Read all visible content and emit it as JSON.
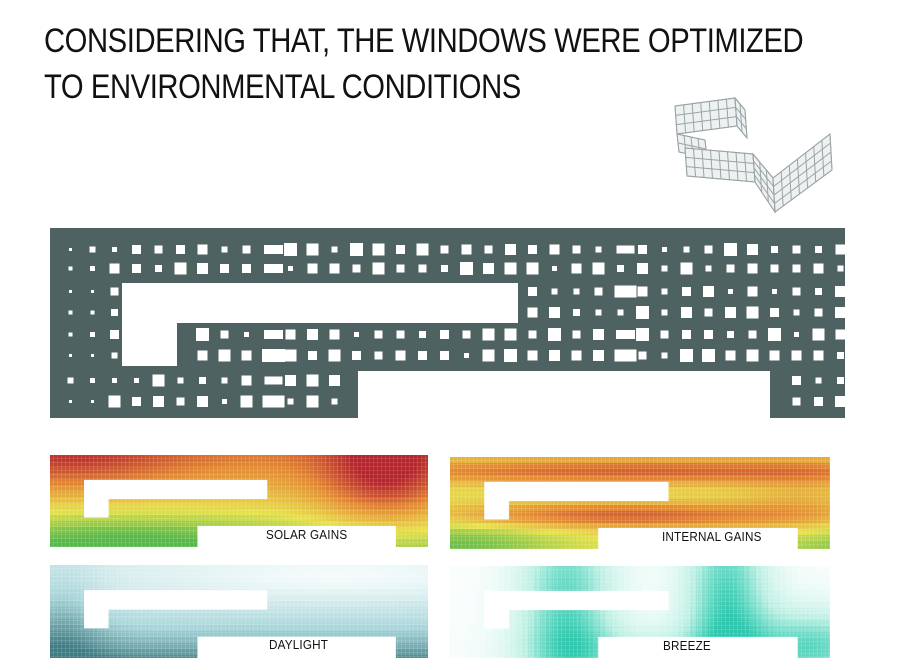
{
  "title": {
    "line1": "CONSIDERING THAT, THE WINDOWS WERE OPTIMIZED",
    "line2": "TO ENVIRONMENTAL CONDITIONS"
  },
  "colors": {
    "facade": "#4e6361",
    "axon_line": "#9aa3a5",
    "solar_scale": [
      "#57b84a",
      "#e6e14a",
      "#e58a2f",
      "#b5232b"
    ],
    "daylight_scale": [
      "#f4fbfb",
      "#a9d6da",
      "#3f7b82"
    ],
    "breeze_scale": [
      "#ffffff",
      "#bfeee3",
      "#2ec7ad"
    ]
  },
  "maps": [
    {
      "id": "solar",
      "label": "SOLAR GAINS"
    },
    {
      "id": "internal",
      "label": "INTERNAL GAINS"
    },
    {
      "id": "daylight",
      "label": "DAYLIGHT"
    },
    {
      "id": "breeze",
      "label": "BREEZE"
    }
  ]
}
